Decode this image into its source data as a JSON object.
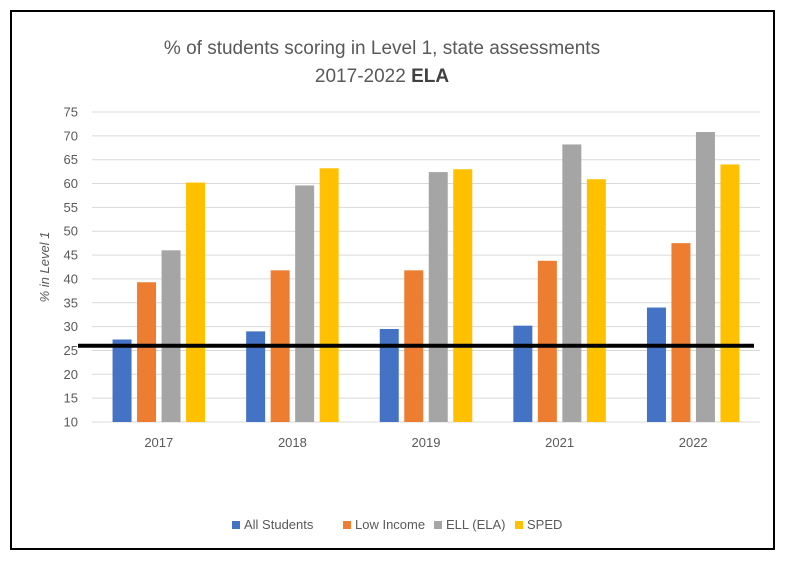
{
  "chart_data": {
    "type": "bar",
    "title_line1": "% of students scoring in Level 1, state assessments",
    "title_line2_plain": "2017-2022",
    "title_line2_bold": "ELA",
    "xlabel": "",
    "ylabel": "% in Level 1",
    "ylim": [
      10,
      75
    ],
    "ytick_step": 5,
    "yticks": [
      "75",
      "70",
      "65",
      "60",
      "55",
      "50",
      "45",
      "40",
      "35",
      "30",
      "25",
      "20",
      "15",
      "10"
    ],
    "grid": true,
    "legend_position": "bottom",
    "categories": [
      "2017",
      "2018",
      "2019",
      "2021",
      "2022"
    ],
    "series": [
      {
        "name": "All Students",
        "color": "#4472C4",
        "values": [
          27.3,
          29.0,
          29.5,
          30.2,
          34.0
        ]
      },
      {
        "name": "Low Income",
        "color": "#ED7D31",
        "values": [
          39.3,
          41.8,
          41.8,
          43.8,
          47.5
        ]
      },
      {
        "name": "ELL (ELA)",
        "color": "#A5A5A5",
        "values": [
          46.0,
          59.6,
          62.4,
          68.2,
          70.8
        ]
      },
      {
        "name": "SPED",
        "color": "#FFC000",
        "values": [
          60.2,
          63.2,
          63.0,
          60.9,
          64.0
        ]
      }
    ],
    "reference_line": {
      "value": 26,
      "color": "#000000"
    }
  }
}
